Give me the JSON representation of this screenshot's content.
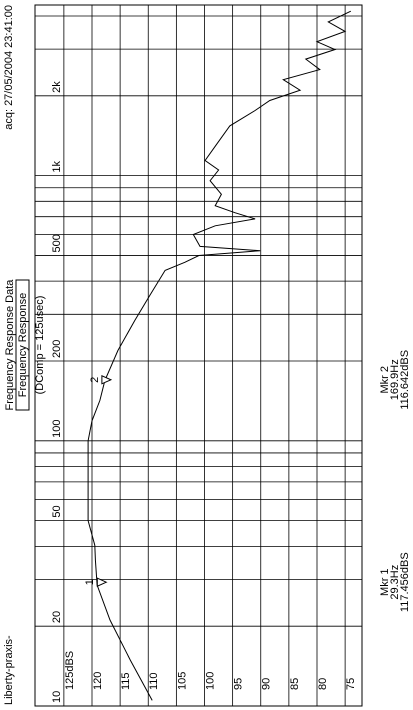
{
  "chart_data": {
    "type": "line",
    "title": "Frequency Response Data",
    "subtitle": "Frequency Response",
    "annotation": "(DComp = 125usec)",
    "acquired": "acq: 27/05/2004 23:41:00",
    "source": "Liberty-praxis-",
    "x_scale": "log",
    "grid": true,
    "xlim": [
      10,
      4400
    ],
    "xticks": [
      10,
      20,
      50,
      100,
      200,
      500,
      {
        "value": 1000,
        "label": "1k"
      },
      {
        "value": 2000,
        "label": "2k"
      }
    ],
    "xminorticks": [
      30,
      40,
      60,
      70,
      80,
      90,
      300,
      400,
      600,
      700,
      800,
      900,
      3000,
      4000
    ],
    "ylim": [
      128,
      72
    ],
    "yticks": [
      {
        "value": 125,
        "label": "125dBS"
      },
      120,
      115,
      110,
      105,
      100,
      95,
      90,
      85,
      80,
      75
    ],
    "series": [
      {
        "color": "#000000",
        "x": [
          10.5,
          14.9,
          21.1,
          28.6,
          35.5,
          40.4,
          50,
          77,
          100,
          119,
          142,
          169,
          219,
          284,
          354,
          439,
          471,
          500,
          521,
          541,
          600,
          647,
          687,
          725,
          770,
          850,
          957,
          1050,
          1140,
          1300,
          1540,
          1760,
          1920,
          2100,
          2300,
          2510,
          2750,
          2990,
          3200,
          3500,
          3800,
          4170
        ],
        "values": [
          109.3,
          113.2,
          116.8,
          119.1,
          119.4,
          119.5,
          120.7,
          120.7,
          120.7,
          120,
          118.6,
          117.7,
          115.4,
          112.4,
          109.7,
          107,
          103.5,
          101,
          90.1,
          100.8,
          102,
          98.1,
          91,
          94.6,
          98.1,
          97,
          99,
          97.5,
          99.9,
          98,
          95.5,
          91,
          88.4,
          83,
          86,
          79.5,
          82,
          76.8,
          80,
          75,
          78,
          74
        ]
      }
    ],
    "markers": [
      {
        "id": "1",
        "name": "Mkr 1",
        "x_label": "29.3Hz",
        "y_label": "117.456dBS",
        "x": 29.3,
        "y": 117.456
      },
      {
        "id": "2",
        "name": "Mkr 2",
        "x_label": "169.9Hz",
        "y_label": "116.642dBS",
        "x": 169.9,
        "y": 116.642
      }
    ]
  }
}
